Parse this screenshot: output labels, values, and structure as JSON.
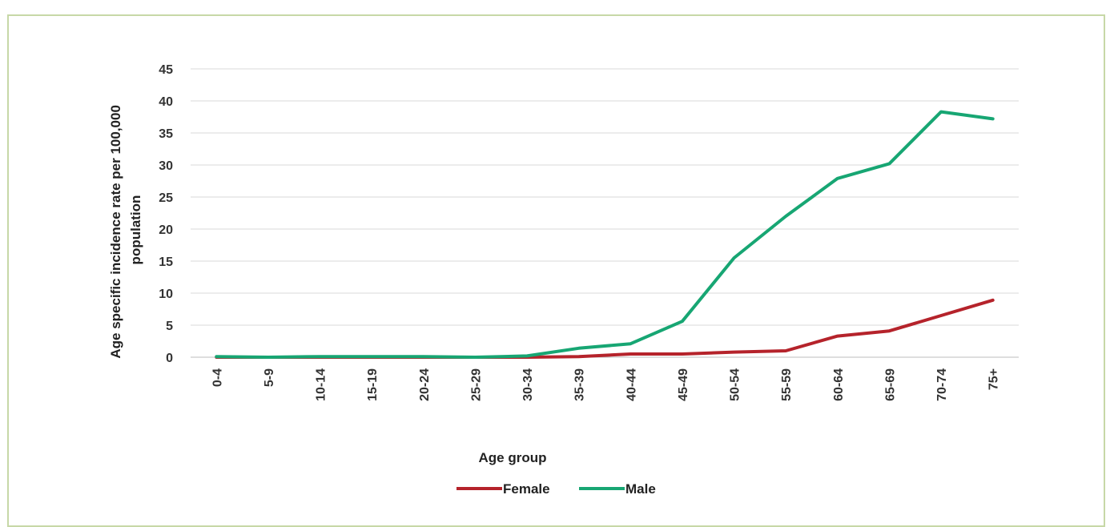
{
  "chart_data": {
    "type": "line",
    "title": "",
    "xlabel": "Age group",
    "ylabel_lines": [
      "Age specific incidence rate per 100,000",
      "population"
    ],
    "categories": [
      "0-4",
      "5-9",
      "10-14",
      "15-19",
      "20-24",
      "25-29",
      "30-34",
      "35-39",
      "40-44",
      "45-49",
      "50-54",
      "55-59",
      "60-64",
      "65-69",
      "70-74",
      "75+"
    ],
    "ylim": [
      0,
      45
    ],
    "yticks": [
      0,
      5,
      10,
      15,
      20,
      25,
      30,
      35,
      40,
      45
    ],
    "grid": true,
    "legend_position": "bottom",
    "series": [
      {
        "name": "Female",
        "color": "#b5232b",
        "values": [
          0,
          0,
          0,
          0,
          0,
          0,
          0,
          0.1,
          0.5,
          0.5,
          0.8,
          1.0,
          3.3,
          4.1,
          6.5,
          8.9
        ]
      },
      {
        "name": "Male",
        "color": "#17a673",
        "values": [
          0.1,
          0,
          0.1,
          0.1,
          0.1,
          0,
          0.2,
          1.4,
          2.1,
          5.6,
          15.5,
          22.0,
          27.9,
          30.2,
          38.3,
          37.2
        ]
      }
    ]
  }
}
